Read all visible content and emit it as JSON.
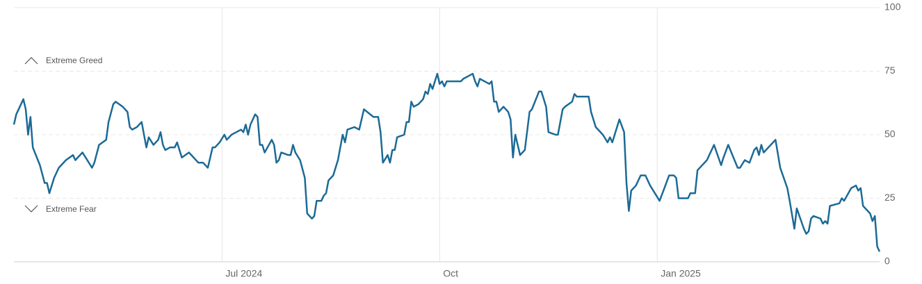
{
  "chart_data": {
    "type": "line",
    "annotations": [
      "Extreme Greed",
      "Extreme Fear"
    ],
    "x": [
      0,
      1,
      4,
      5,
      6,
      7,
      8,
      11,
      13,
      14,
      15,
      17,
      19,
      22,
      25,
      26,
      27,
      29,
      31,
      33,
      34,
      36,
      39,
      40,
      42,
      43,
      46,
      48,
      49,
      50,
      52,
      54,
      56,
      57,
      59,
      61,
      62,
      63,
      64,
      66,
      68,
      69,
      71,
      74,
      76,
      78,
      80,
      82,
      84,
      85,
      87,
      89,
      90,
      92,
      96,
      97,
      98,
      99,
      100,
      102,
      103,
      104,
      105,
      106,
      109,
      110,
      111,
      112,
      113,
      116,
      117,
      118,
      119,
      121,
      123,
      124,
      126,
      127,
      128,
      130,
      131,
      132,
      133,
      135,
      137,
      139,
      140,
      141,
      144,
      146,
      148,
      152,
      154,
      155,
      156,
      158,
      159,
      160,
      161,
      162,
      165,
      166,
      167,
      168,
      169,
      171,
      173,
      174,
      175,
      176,
      177,
      178,
      179,
      180,
      181,
      182,
      183,
      186,
      187,
      189,
      190,
      194,
      195,
      196,
      197,
      201,
      202,
      203,
      204,
      205,
      206,
      207,
      209,
      210,
      211,
      212,
      214,
      216,
      218,
      219,
      222,
      223,
      225,
      226,
      229,
      230,
      232,
      233,
      236,
      237,
      238,
      243,
      244,
      246,
      249,
      251,
      252,
      253,
      256,
      258,
      259,
      260,
      261,
      263,
      265,
      267,
      269,
      271,
      273,
      275,
      277,
      279,
      280,
      281,
      285,
      286,
      288,
      289,
      293,
      296,
      299,
      300,
      302,
      306,
      307,
      309,
      311,
      313,
      314,
      315,
      316,
      317,
      322,
      324,
      327,
      328,
      330,
      331,
      334,
      335,
      336,
      337,
      338,
      341,
      342,
      343,
      344,
      345,
      349,
      350,
      351,
      354,
      356,
      357,
      358,
      359,
      362,
      363,
      364,
      365,
      366
    ],
    "series": [
      {
        "color": "#1b6a96",
        "values": [
          54,
          58,
          64,
          60,
          50,
          57,
          45,
          38,
          31,
          31,
          27,
          33,
          37,
          40,
          42,
          40,
          41,
          43,
          40,
          37,
          39,
          46,
          48,
          55,
          62,
          63,
          61,
          59,
          53,
          52,
          53,
          55,
          45,
          49,
          46,
          48,
          51,
          46,
          44,
          45,
          45,
          47,
          41,
          43,
          41,
          39,
          39,
          37,
          45,
          45,
          47,
          50,
          48,
          50,
          52,
          51,
          54,
          50,
          54,
          58,
          57,
          46,
          46,
          43,
          48,
          46,
          39,
          40,
          43,
          42,
          42,
          46,
          43,
          40,
          33,
          19,
          17,
          18,
          24,
          24,
          26,
          27,
          32,
          34,
          40,
          50,
          47,
          52,
          53,
          52,
          60,
          57,
          57,
          51,
          39,
          42,
          39,
          44,
          44,
          49,
          50,
          55,
          55,
          63,
          61,
          62,
          64,
          67,
          66,
          70,
          68,
          71,
          74,
          70,
          71,
          69,
          71,
          71,
          71,
          71,
          72,
          74,
          71,
          69,
          72,
          70,
          71,
          63,
          63,
          59,
          60,
          61,
          59,
          56,
          41,
          50,
          42,
          44,
          59,
          60,
          67,
          67,
          61,
          51,
          50,
          50,
          60,
          61,
          63,
          66,
          65,
          65,
          59,
          53,
          50,
          47,
          49,
          47,
          56,
          51,
          31,
          20,
          28,
          30,
          34,
          34,
          30,
          27,
          24,
          29,
          34,
          34,
          33,
          25,
          25,
          27,
          27,
          36,
          40,
          46,
          38,
          41,
          46,
          37,
          37,
          40,
          39,
          44,
          45,
          42,
          46,
          43,
          48,
          37,
          29,
          24,
          13,
          21,
          13,
          11,
          12,
          17,
          18,
          17,
          15,
          16,
          15,
          22,
          23,
          25,
          24,
          29,
          30,
          28,
          29,
          22,
          19,
          16,
          18,
          6,
          4
        ]
      }
    ],
    "xlim": [
      0,
      366
    ],
    "xticks": [
      {
        "value": 88,
        "label": "Jul 2024"
      },
      {
        "value": 180,
        "label": "Oct"
      },
      {
        "value": 272,
        "label": "Jan 2025"
      }
    ],
    "ylim": [
      0,
      100
    ],
    "yticks": [
      0,
      25,
      50,
      75,
      100
    ],
    "grid": true
  }
}
